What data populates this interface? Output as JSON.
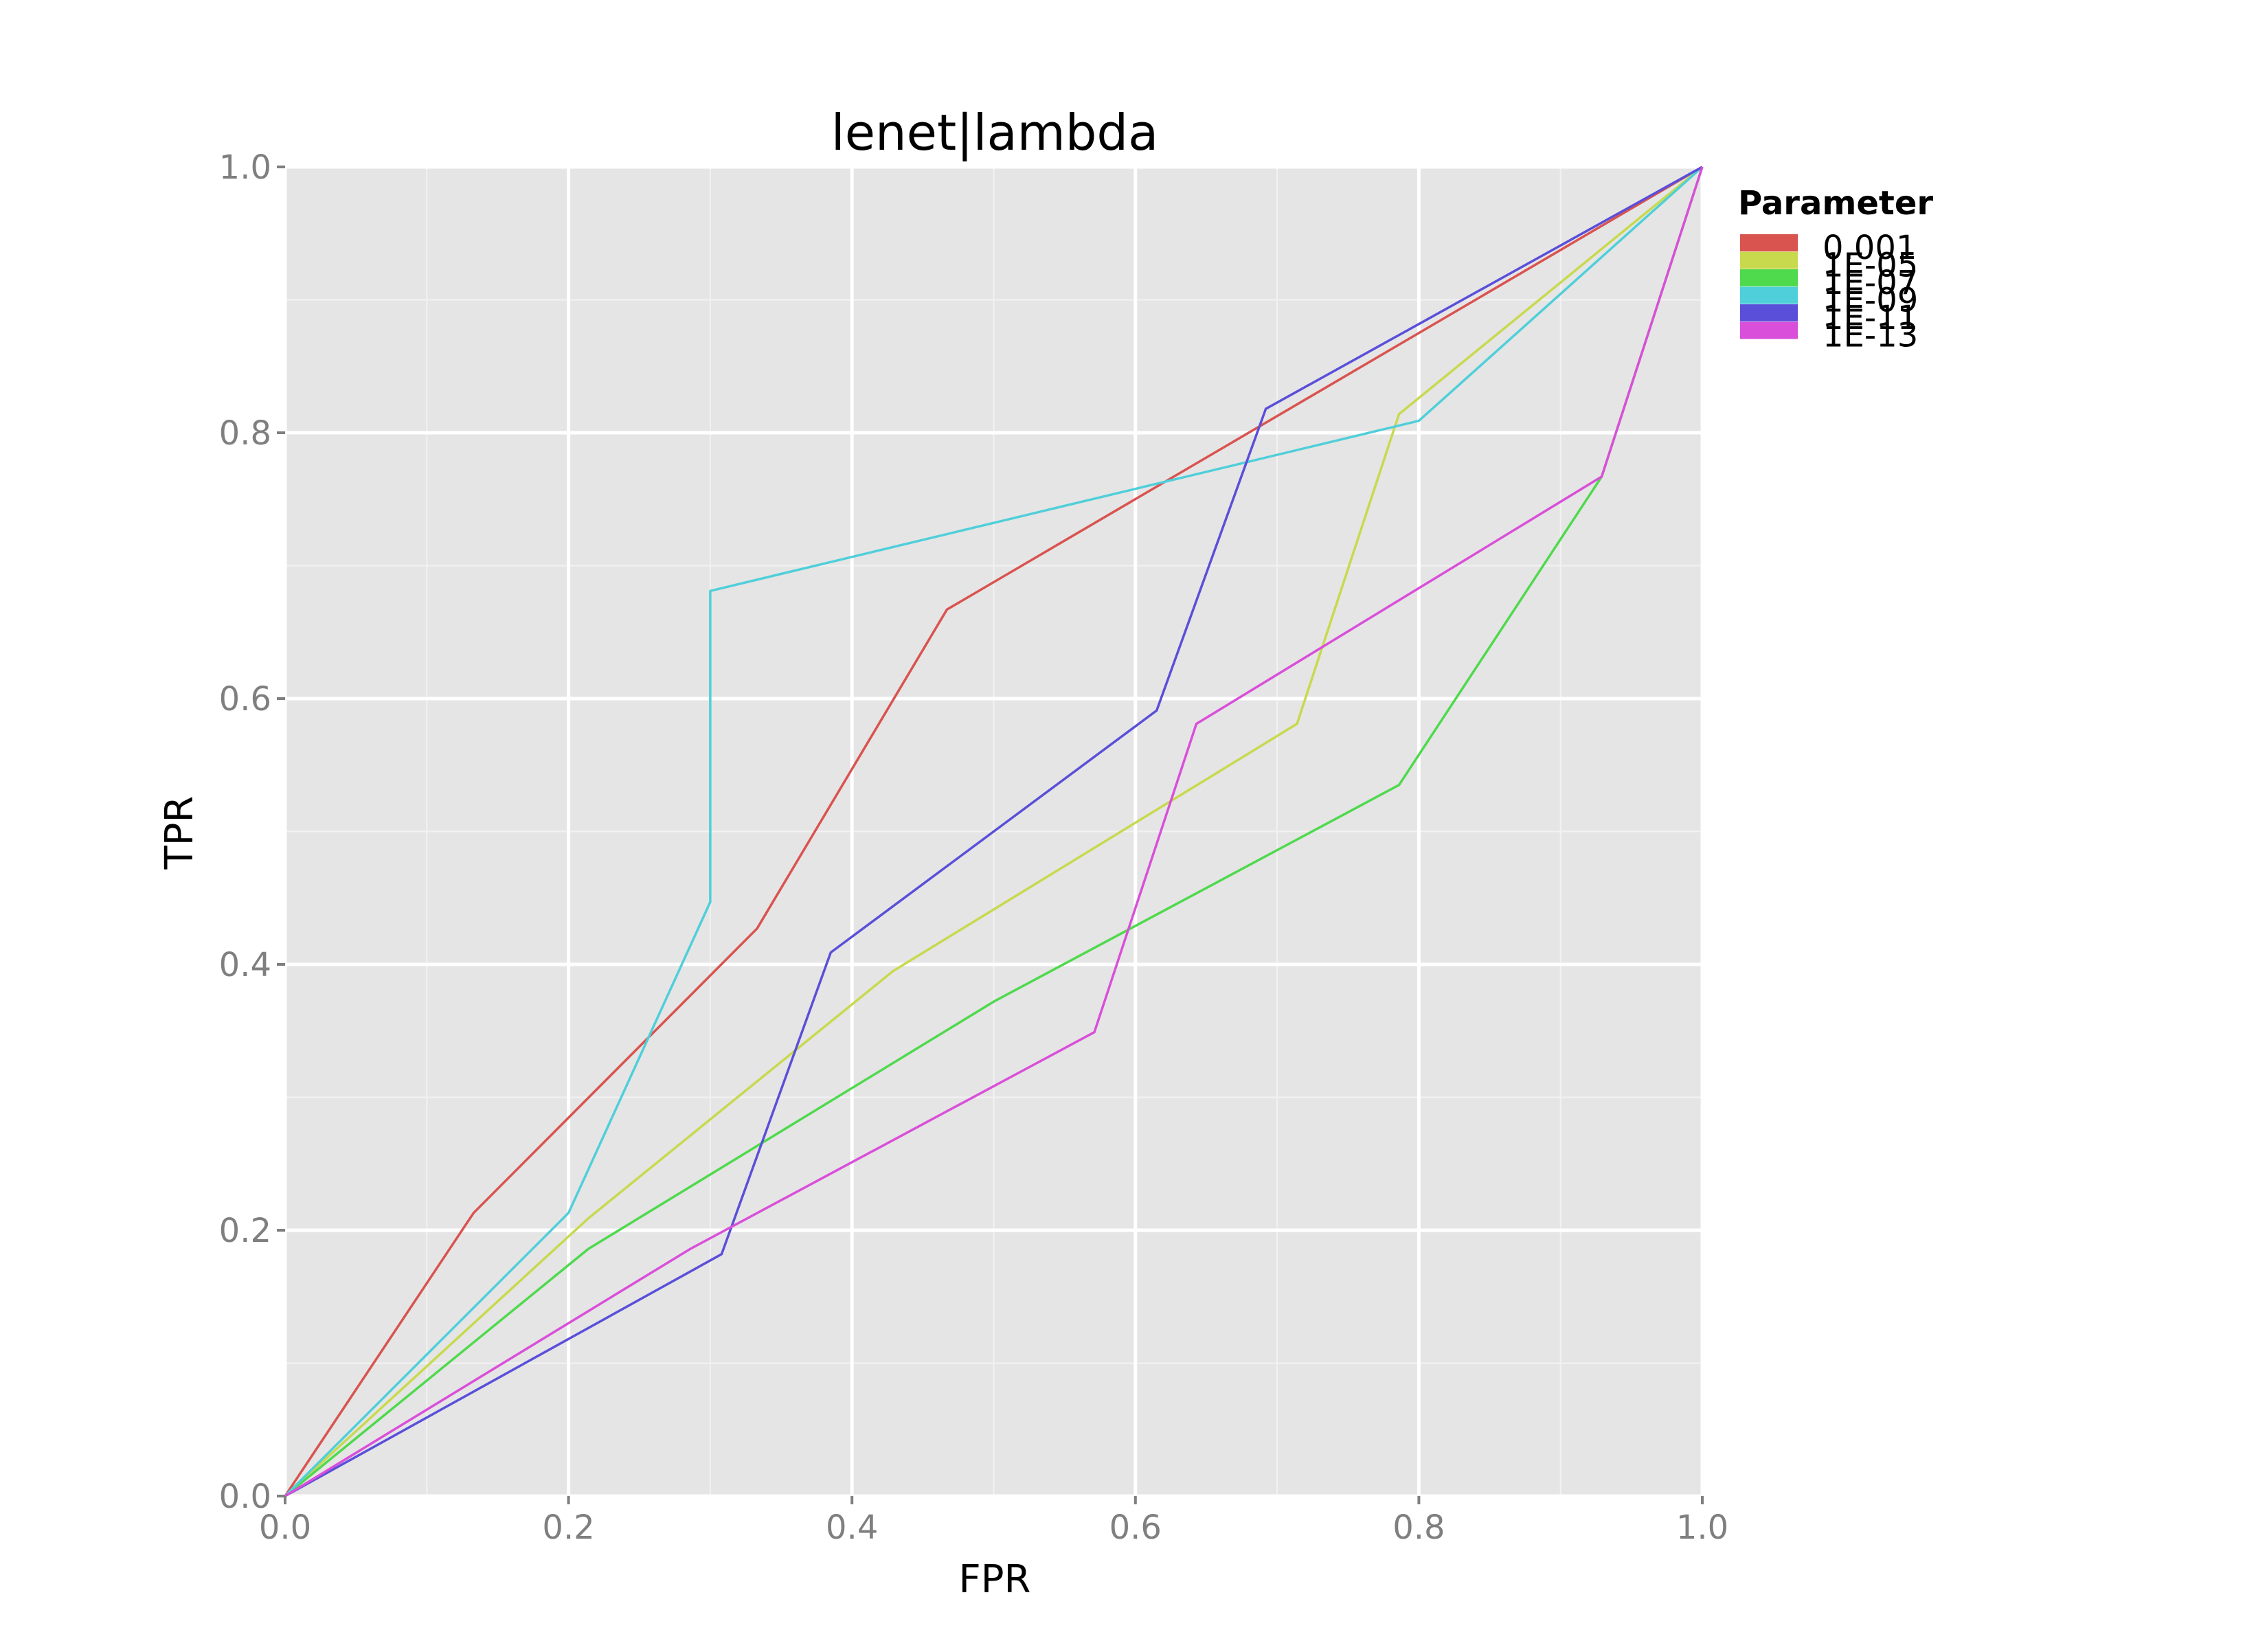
{
  "chart_data": {
    "type": "line",
    "title": "lenet|lambda",
    "xlabel": "FPR",
    "ylabel": "TPR",
    "xlim": [
      0,
      1
    ],
    "ylim": [
      0,
      1
    ],
    "x_ticks": [
      "0.0",
      "0.2",
      "0.4",
      "0.6",
      "0.8",
      "1.0"
    ],
    "y_ticks": [
      "0.0",
      "0.2",
      "0.4",
      "0.6",
      "0.8",
      "1.0"
    ],
    "grid": true,
    "legend_position": "right",
    "legend_title": "Parameter",
    "series": [
      {
        "name": "0.001",
        "color": "#d9534f",
        "points": [
          [
            0,
            0
          ],
          [
            0.133,
            0.213
          ],
          [
            0.333,
            0.427
          ],
          [
            0.467,
            0.667
          ],
          [
            1.0,
            1.0
          ]
        ]
      },
      {
        "name": "1E-05",
        "color": "#c8d94d",
        "points": [
          [
            0,
            0
          ],
          [
            0.214,
            0.209
          ],
          [
            0.429,
            0.395
          ],
          [
            0.714,
            0.581
          ],
          [
            0.786,
            0.814
          ],
          [
            1.0,
            1.0
          ]
        ]
      },
      {
        "name": "1E-07",
        "color": "#4fd94d",
        "points": [
          [
            0,
            0
          ],
          [
            0.214,
            0.186
          ],
          [
            0.5,
            0.372
          ],
          [
            0.786,
            0.535
          ],
          [
            0.929,
            0.767
          ],
          [
            1.0,
            1.0
          ]
        ]
      },
      {
        "name": "1E-09",
        "color": "#4fcfd9",
        "points": [
          [
            0,
            0
          ],
          [
            0.2,
            0.213
          ],
          [
            0.3,
            0.447
          ],
          [
            0.3,
            0.681
          ],
          [
            0.8,
            0.809
          ],
          [
            1.0,
            1.0
          ]
        ]
      },
      {
        "name": "1E-11",
        "color": "#5a4fd9",
        "points": [
          [
            0,
            0
          ],
          [
            0.308,
            0.182
          ],
          [
            0.385,
            0.409
          ],
          [
            0.615,
            0.591
          ],
          [
            0.692,
            0.818
          ],
          [
            1.0,
            1.0
          ]
        ]
      },
      {
        "name": "1E-13",
        "color": "#d94fd9",
        "points": [
          [
            0,
            0
          ],
          [
            0.286,
            0.186
          ],
          [
            0.571,
            0.349
          ],
          [
            0.643,
            0.581
          ],
          [
            0.929,
            0.767
          ],
          [
            1.0,
            1.0
          ]
        ]
      }
    ]
  }
}
